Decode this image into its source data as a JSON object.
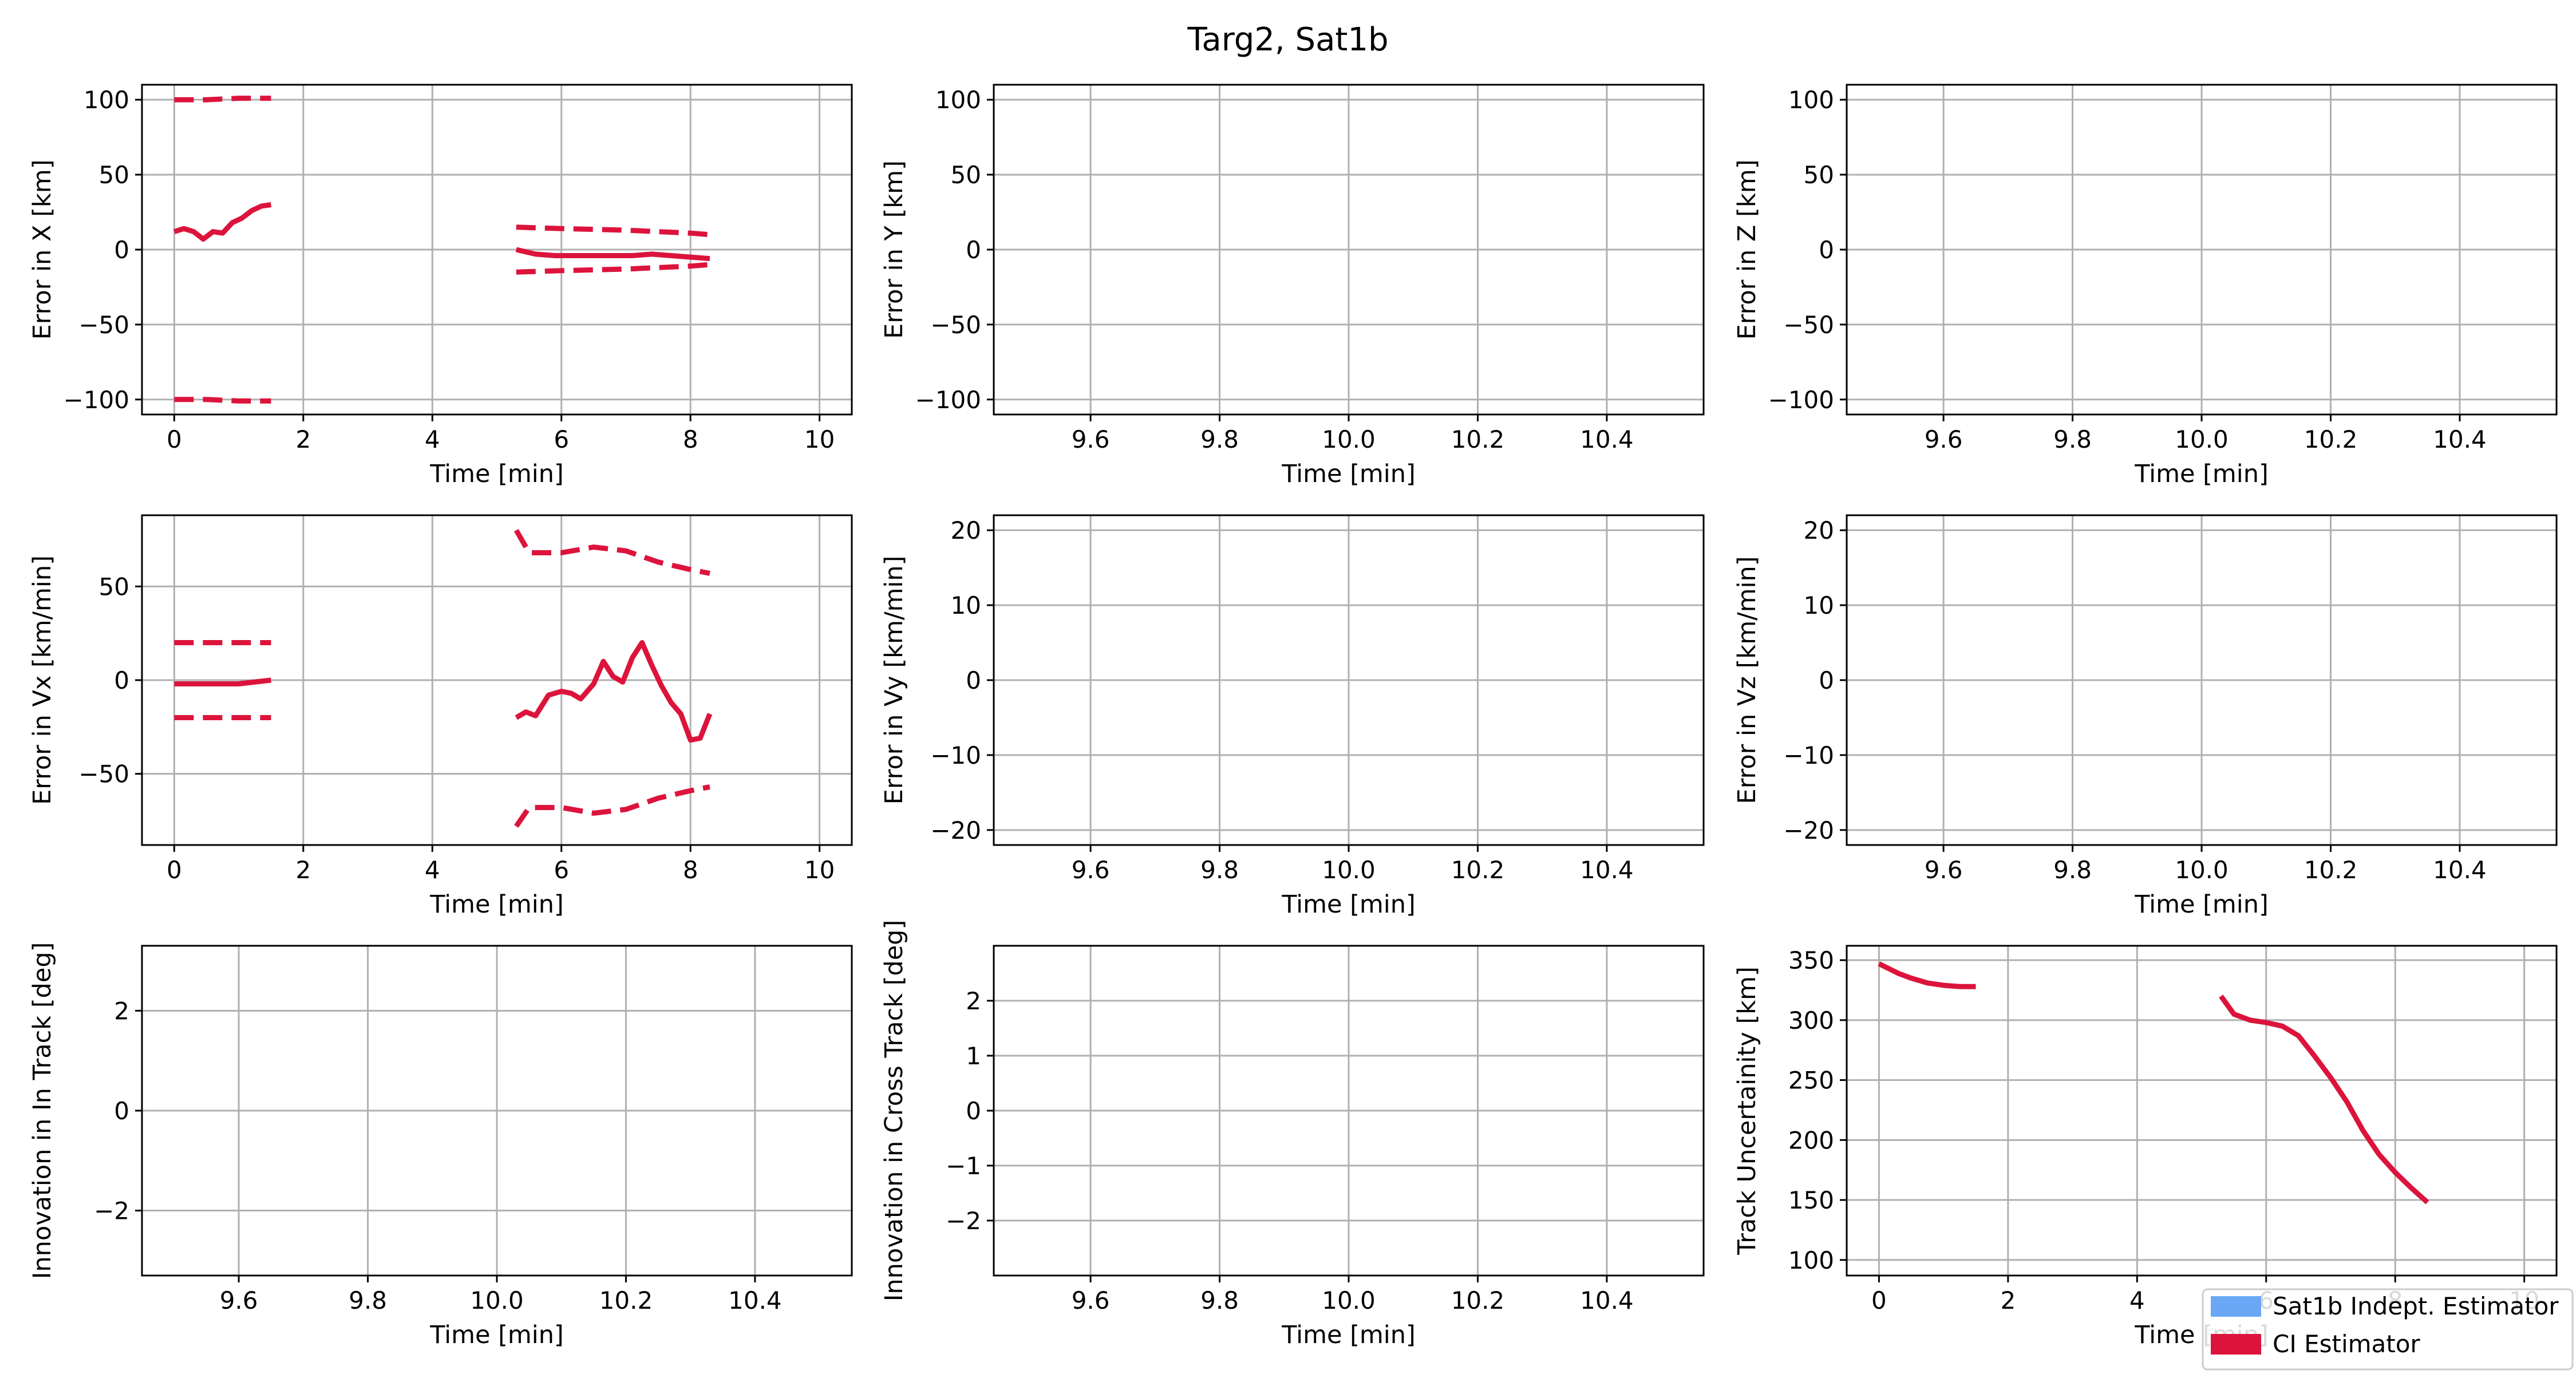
{
  "figure": {
    "title": "Targ2, Sat1b"
  },
  "colors": {
    "ci": "#dc143c",
    "sat": "#6aa8f5",
    "grid": "#b0b0b0"
  },
  "legend": {
    "placement": "bottom-right",
    "entries": [
      {
        "label": "Sat1b Indept. Estimator",
        "color": "#6aa8f5"
      },
      {
        "label": "CI Estimator",
        "color": "#dc143c"
      }
    ]
  },
  "chart_data": [
    {
      "type": "line",
      "xlabel": "Time [min]",
      "ylabel": "Error in X [km]",
      "xlim": [
        -0.5,
        10.5
      ],
      "ylim": [
        -110,
        110
      ],
      "xticks": [
        0,
        2,
        4,
        6,
        8,
        10
      ],
      "yticks": [
        -100,
        -50,
        0,
        50,
        100
      ],
      "series": [
        {
          "style": "solid",
          "segments": [
            [
              [
                0,
                12
              ],
              [
                0.15,
                14
              ],
              [
                0.3,
                12
              ],
              [
                0.45,
                7
              ],
              [
                0.6,
                12
              ],
              [
                0.75,
                11
              ],
              [
                0.9,
                18
              ],
              [
                1.05,
                21
              ],
              [
                1.2,
                26
              ],
              [
                1.35,
                29
              ],
              [
                1.5,
                30
              ]
            ],
            [
              [
                5.3,
                0
              ],
              [
                5.6,
                -3
              ],
              [
                5.9,
                -4
              ],
              [
                6.2,
                -4
              ],
              [
                6.5,
                -4
              ],
              [
                6.8,
                -4
              ],
              [
                7.1,
                -4
              ],
              [
                7.4,
                -3
              ],
              [
                7.7,
                -4
              ],
              [
                8.0,
                -5
              ],
              [
                8.3,
                -6
              ]
            ]
          ]
        },
        {
          "style": "dashed",
          "segments": [
            [
              [
                0,
                100
              ],
              [
                0.5,
                100
              ],
              [
                1.0,
                101
              ],
              [
                1.5,
                101
              ]
            ],
            [
              [
                5.3,
                15
              ],
              [
                6.0,
                14
              ],
              [
                7.0,
                13
              ],
              [
                8.0,
                11
              ],
              [
                8.3,
                10
              ]
            ]
          ]
        },
        {
          "style": "dashed",
          "segments": [
            [
              [
                0,
                -100
              ],
              [
                0.5,
                -100
              ],
              [
                1.0,
                -101
              ],
              [
                1.5,
                -101
              ]
            ],
            [
              [
                5.3,
                -15
              ],
              [
                6.0,
                -14
              ],
              [
                7.0,
                -13
              ],
              [
                8.0,
                -11
              ],
              [
                8.3,
                -10
              ]
            ]
          ]
        }
      ]
    },
    {
      "type": "line",
      "xlabel": "Time [min]",
      "ylabel": "Error in Y [km]",
      "xlim": [
        9.45,
        10.55
      ],
      "ylim": [
        -110,
        110
      ],
      "xticks": [
        9.6,
        9.8,
        10.0,
        10.2,
        10.4
      ],
      "yticks": [
        -100,
        -50,
        0,
        50,
        100
      ],
      "series": []
    },
    {
      "type": "line",
      "xlabel": "Time [min]",
      "ylabel": "Error in Z [km]",
      "xlim": [
        9.45,
        10.55
      ],
      "ylim": [
        -110,
        110
      ],
      "xticks": [
        9.6,
        9.8,
        10.0,
        10.2,
        10.4
      ],
      "yticks": [
        -100,
        -50,
        0,
        50,
        100
      ],
      "series": []
    },
    {
      "type": "line",
      "xlabel": "Time [min]",
      "ylabel": "Error in Vx [km/min]",
      "xlim": [
        -0.5,
        10.5
      ],
      "ylim": [
        -88,
        88
      ],
      "xticks": [
        0,
        2,
        4,
        6,
        8,
        10
      ],
      "yticks": [
        -50,
        0,
        50
      ],
      "series": [
        {
          "style": "solid",
          "segments": [
            [
              [
                0,
                -2
              ],
              [
                0.5,
                -2
              ],
              [
                1.0,
                -2
              ],
              [
                1.5,
                0
              ]
            ],
            [
              [
                5.3,
                -20
              ],
              [
                5.45,
                -17
              ],
              [
                5.6,
                -19
              ],
              [
                5.8,
                -8
              ],
              [
                6.0,
                -6
              ],
              [
                6.15,
                -7
              ],
              [
                6.3,
                -10
              ],
              [
                6.5,
                -2
              ],
              [
                6.65,
                10
              ],
              [
                6.8,
                2
              ],
              [
                6.95,
                -1
              ],
              [
                7.1,
                12
              ],
              [
                7.25,
                20
              ],
              [
                7.4,
                8
              ],
              [
                7.55,
                -3
              ],
              [
                7.7,
                -12
              ],
              [
                7.85,
                -18
              ],
              [
                8.0,
                -32
              ],
              [
                8.15,
                -31
              ],
              [
                8.3,
                -18
              ]
            ]
          ]
        },
        {
          "style": "dashed",
          "segments": [
            [
              [
                0,
                20
              ],
              [
                0.5,
                20
              ],
              [
                1.0,
                20
              ],
              [
                1.5,
                20
              ]
            ],
            [
              [
                5.3,
                80
              ],
              [
                5.5,
                68
              ],
              [
                6.0,
                68
              ],
              [
                6.5,
                71
              ],
              [
                7.0,
                69
              ],
              [
                7.5,
                63
              ],
              [
                8.0,
                59
              ],
              [
                8.3,
                57
              ]
            ]
          ]
        },
        {
          "style": "dashed",
          "segments": [
            [
              [
                0,
                -20
              ],
              [
                0.5,
                -20
              ],
              [
                1.0,
                -20
              ],
              [
                1.5,
                -20
              ]
            ],
            [
              [
                5.3,
                -78
              ],
              [
                5.5,
                -68
              ],
              [
                6.0,
                -68
              ],
              [
                6.5,
                -71
              ],
              [
                7.0,
                -69
              ],
              [
                7.5,
                -63
              ],
              [
                8.0,
                -59
              ],
              [
                8.3,
                -57
              ]
            ]
          ]
        }
      ]
    },
    {
      "type": "line",
      "xlabel": "Time [min]",
      "ylabel": "Error in Vy [km/min]",
      "xlim": [
        9.45,
        10.55
      ],
      "ylim": [
        -22,
        22
      ],
      "xticks": [
        9.6,
        9.8,
        10.0,
        10.2,
        10.4
      ],
      "yticks": [
        -20,
        -10,
        0,
        10,
        20
      ],
      "series": []
    },
    {
      "type": "line",
      "xlabel": "Time [min]",
      "ylabel": "Error in Vz [km/min]",
      "xlim": [
        9.45,
        10.55
      ],
      "ylim": [
        -22,
        22
      ],
      "xticks": [
        9.6,
        9.8,
        10.0,
        10.2,
        10.4
      ],
      "yticks": [
        -20,
        -10,
        0,
        10,
        20
      ],
      "series": []
    },
    {
      "type": "line",
      "xlabel": "Time [min]",
      "ylabel": "Innovation in In Track [deg]",
      "xlim": [
        9.45,
        10.55
      ],
      "ylim": [
        -3.3,
        3.3
      ],
      "xticks": [
        9.6,
        9.8,
        10.0,
        10.2,
        10.4
      ],
      "yticks": [
        -2,
        0,
        2
      ],
      "series": []
    },
    {
      "type": "line",
      "xlabel": "Time [min]",
      "ylabel": "Innovation in Cross Track [deg]",
      "xlim": [
        9.45,
        10.55
      ],
      "ylim": [
        -3.0,
        3.0
      ],
      "xticks": [
        9.6,
        9.8,
        10.0,
        10.2,
        10.4
      ],
      "yticks": [
        -2,
        -1,
        0,
        1,
        2
      ],
      "series": []
    },
    {
      "type": "line",
      "xlabel": "Time [min]",
      "ylabel": "Track Uncertainity [km]",
      "xlim": [
        -0.5,
        10.5
      ],
      "ylim": [
        87,
        362
      ],
      "xticks": [
        0,
        2,
        4,
        6,
        8,
        10
      ],
      "yticks": [
        100,
        150,
        200,
        250,
        300,
        350
      ],
      "series": [
        {
          "style": "solid",
          "segments": [
            [
              [
                0,
                347
              ],
              [
                0.15,
                343
              ],
              [
                0.3,
                339
              ],
              [
                0.5,
                335
              ],
              [
                0.75,
                331
              ],
              [
                1.0,
                329
              ],
              [
                1.25,
                328
              ],
              [
                1.5,
                328
              ]
            ],
            [
              [
                5.3,
                320
              ],
              [
                5.5,
                305
              ],
              [
                5.75,
                300
              ],
              [
                6.0,
                298
              ],
              [
                6.25,
                295
              ],
              [
                6.5,
                287
              ],
              [
                6.75,
                270
              ],
              [
                7.0,
                252
              ],
              [
                7.25,
                232
              ],
              [
                7.5,
                208
              ],
              [
                7.75,
                188
              ],
              [
                8.0,
                173
              ],
              [
                8.25,
                160
              ],
              [
                8.5,
                148
              ]
            ]
          ]
        }
      ]
    }
  ]
}
